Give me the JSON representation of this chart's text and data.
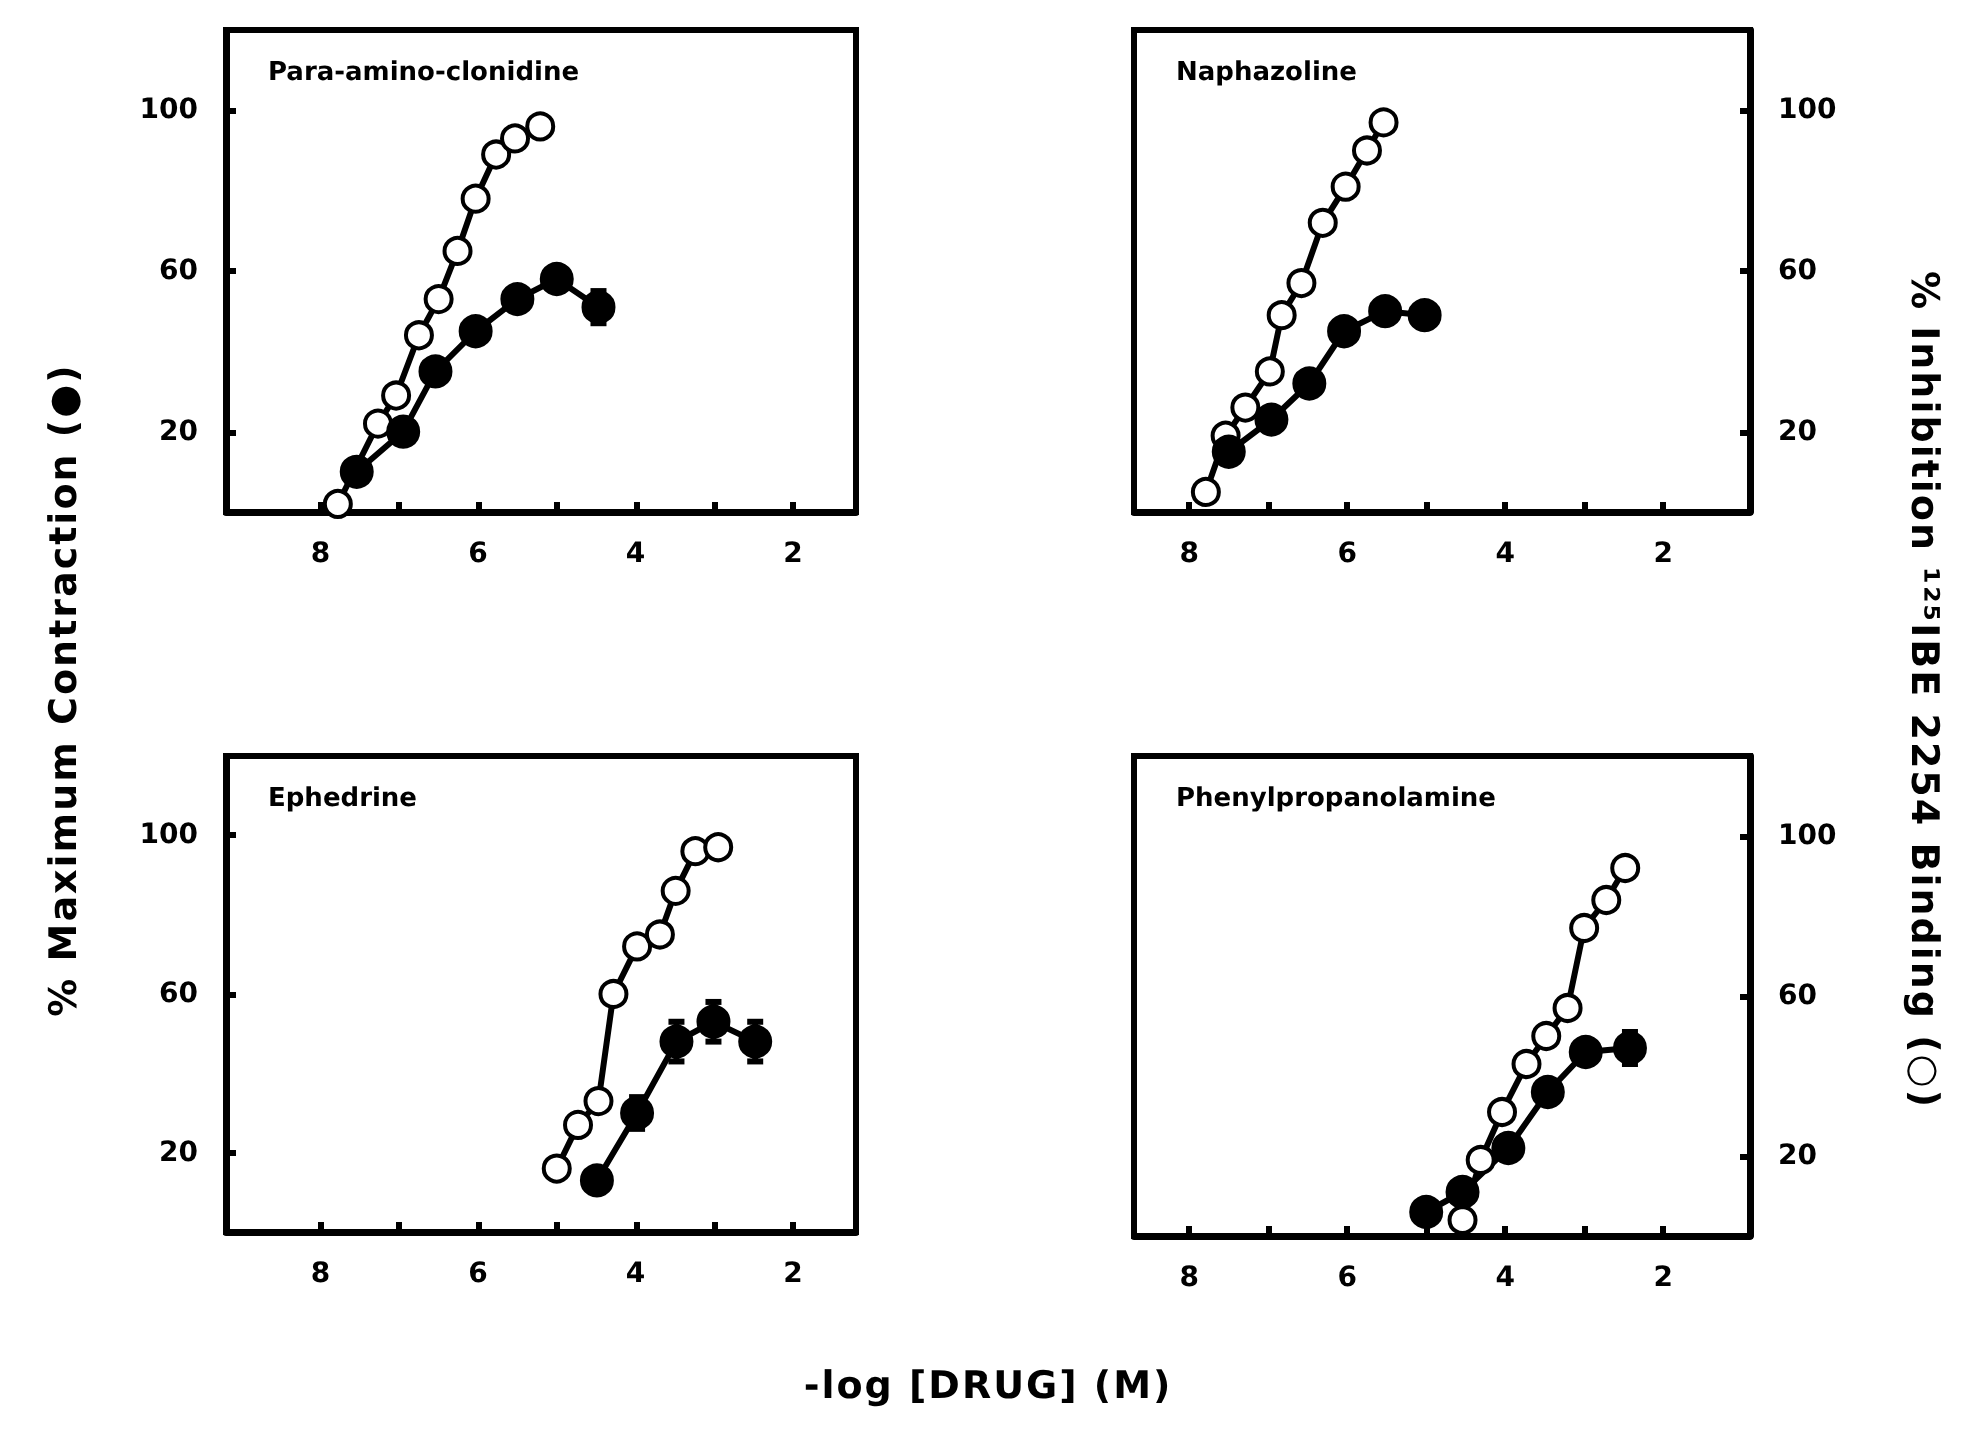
{
  "chart_data": [
    {
      "type": "line",
      "title": "Para-amino-clonidine",
      "ylabel": "% Maximum Contraction (●)",
      "xlim": [
        9.2,
        1.2
      ],
      "xticks": [
        8,
        {
          "value": 7,
          "label": null
        },
        6,
        {
          "value": 5,
          "label": null
        },
        4,
        {
          "value": 3,
          "label": null
        },
        2
      ],
      "ylim": [
        0,
        120
      ],
      "yticks": [
        20,
        60,
        100
      ],
      "grid": false,
      "line_style": "solid",
      "series": [
        {
          "color": "#000000",
          "marker": "emptyCircle",
          "x": [
            7.78,
            7.27,
            7.04,
            6.75,
            6.5,
            6.26,
            6.03,
            5.77,
            5.53,
            5.21
          ],
          "values": [
            2,
            22,
            29,
            44,
            53,
            65,
            78,
            89,
            93,
            96
          ]
        },
        {
          "color": "#000000",
          "marker": "circle",
          "x": [
            7.54,
            6.95,
            6.54,
            6.03,
            5.5,
            5.0,
            4.47
          ],
          "values": [
            10,
            20,
            35,
            45,
            53,
            58,
            51
          ],
          "errors": [
            null,
            null,
            null,
            null,
            null,
            null,
            4
          ]
        }
      ]
    },
    {
      "type": "line",
      "title": "Naphazoline",
      "y2label": "% Inhibition ¹²⁵IBE 2254 Binding (○)",
      "xlim": [
        8.7,
        0.9
      ],
      "xticks": [
        8,
        {
          "value": 7,
          "label": null
        },
        6,
        {
          "value": 5,
          "label": null
        },
        4,
        {
          "value": 3,
          "label": null
        },
        2
      ],
      "y2lim": [
        0,
        120
      ],
      "y2ticks": [
        20,
        60,
        100
      ],
      "grid": false,
      "line_style": "solid",
      "series": [
        {
          "color": "#000000",
          "marker": "emptyCircle",
          "axis": "y2",
          "x": [
            7.79,
            7.54,
            7.29,
            6.98,
            6.83,
            6.58,
            6.31,
            6.02,
            5.75,
            5.54
          ],
          "values": [
            5,
            19,
            26,
            35,
            49,
            57,
            72,
            81,
            90,
            97
          ]
        },
        {
          "color": "#000000",
          "marker": "circle",
          "axis": "y2",
          "x": [
            7.5,
            6.96,
            6.48,
            6.04,
            5.52,
            5.02
          ],
          "values": [
            15,
            23,
            32,
            45,
            50,
            49
          ]
        }
      ]
    },
    {
      "type": "line",
      "title": "Ephedrine",
      "xlabel": "-log [DRUG] (M)",
      "xlim": [
        9.2,
        1.2
      ],
      "xticks": [
        8,
        {
          "value": 7,
          "label": null
        },
        6,
        {
          "value": 5,
          "label": null
        },
        4,
        {
          "value": 3,
          "label": null
        },
        2
      ],
      "ylim": [
        0,
        120
      ],
      "yticks": [
        20,
        60,
        100
      ],
      "grid": false,
      "line_style": "solid",
      "series": [
        {
          "color": "#000000",
          "marker": "emptyCircle",
          "x": [
            5.0,
            4.73,
            4.47,
            4.28,
            3.98,
            3.69,
            3.49,
            3.24,
            2.95
          ],
          "values": [
            16,
            27,
            33,
            60,
            72,
            75,
            86,
            96,
            97
          ]
        },
        {
          "color": "#000000",
          "marker": "circle",
          "x": [
            4.49,
            3.98,
            3.48,
            3.01,
            2.48
          ],
          "values": [
            13,
            30,
            48,
            53,
            48
          ],
          "errors": [
            null,
            4,
            5,
            5,
            5
          ]
        }
      ]
    },
    {
      "type": "line",
      "title": "Phenylpropanolamine",
      "xlim": [
        8.7,
        0.9
      ],
      "xticks": [
        8,
        {
          "value": 7,
          "label": null
        },
        6,
        {
          "value": 5,
          "label": null
        },
        4,
        {
          "value": 3,
          "label": null
        },
        2
      ],
      "y2lim": [
        0,
        120
      ],
      "y2ticks": [
        20,
        60,
        100
      ],
      "grid": false,
      "line_style": "solid",
      "series": [
        {
          "color": "#000000",
          "marker": "emptyCircle",
          "axis": "y2",
          "x": [
            4.54,
            4.31,
            4.04,
            3.73,
            3.48,
            3.21,
            3.0,
            2.72,
            2.48
          ],
          "values": [
            4,
            19,
            31,
            43,
            50,
            57,
            77,
            84,
            92
          ]
        },
        {
          "color": "#000000",
          "marker": "circle",
          "axis": "y2",
          "x": [
            5.0,
            4.54,
            3.96,
            3.46,
            2.98,
            2.42
          ],
          "values": [
            6,
            11,
            22,
            36,
            46,
            47
          ],
          "errors": [
            null,
            null,
            null,
            null,
            null,
            4
          ]
        }
      ]
    }
  ]
}
